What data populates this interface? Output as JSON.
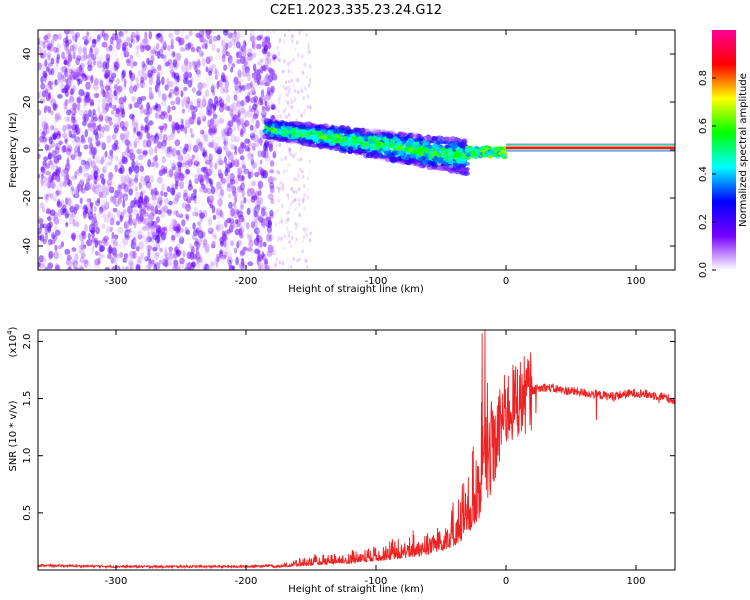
{
  "title": "C2E1.2023.335.23.24.G12",
  "chart_data": [
    {
      "type": "heatmap",
      "title": "",
      "xlabel": "Height of straight line (km)",
      "ylabel": "Frequency (Hz)",
      "xlim": [
        -360,
        130
      ],
      "ylim": [
        -50,
        50
      ],
      "xticks": [
        -300,
        -200,
        -100,
        0,
        100
      ],
      "yticks": [
        -40,
        -20,
        0,
        20,
        40
      ],
      "colorbar": {
        "label": "Normalized spectral amplitude",
        "range": [
          0,
          1
        ],
        "ticks": [
          "0.0",
          "0.2",
          "0.4",
          "0.6",
          "0.8"
        ],
        "colors": [
          "#ffffff",
          "#7700ff",
          "#0000ff",
          "#00ffff",
          "#00ff00",
          "#ffff00",
          "#ff0000",
          "#ff0099"
        ]
      },
      "features": [
        {
          "region": "noise",
          "x_range": [
            -360,
            -178
          ],
          "y_range": [
            -50,
            50
          ],
          "amplitude": 0.1
        },
        {
          "region": "sparse noise",
          "x_range": [
            -178,
            -150
          ],
          "y_range": [
            -50,
            50
          ],
          "amplitude": 0.02
        },
        {
          "region": "doppler band",
          "x_start": -185,
          "x_end": -30,
          "freq_start": 9,
          "freq_end": -3,
          "half_width": 6,
          "amplitude": 0.45
        },
        {
          "region": "transition",
          "x_range": [
            -30,
            0
          ],
          "freq": [
            -2,
            0
          ],
          "amplitude": 0.5
        },
        {
          "region": "direct signal",
          "x_range": [
            0,
            130
          ],
          "freq": 1,
          "amplitude": 0.95
        }
      ]
    },
    {
      "type": "line",
      "title": "",
      "xlabel": "Height of straight line (km)",
      "ylabel": "SNR (10 * v/v)",
      "yscale_label": "(x10",
      "yscale_exp": "4",
      "xlim": [
        -360,
        130
      ],
      "ylim": [
        0,
        2.1
      ],
      "xticks": [
        -300,
        -200,
        -100,
        0,
        100
      ],
      "yticks": [
        0.5,
        1.0,
        1.5,
        2.0
      ],
      "ytick_labels": [
        "0.5",
        "1.0",
        "1.5",
        "2.0"
      ],
      "series": [
        {
          "color": "#ee2222",
          "x": [
            -360,
            -300,
            -200,
            -180,
            -150,
            -120,
            -100,
            -80,
            -60,
            -40,
            -30,
            -20,
            -18,
            -15,
            -10,
            -5,
            0,
            10,
            20,
            30,
            40,
            60,
            80,
            100,
            120,
            130
          ],
          "y": [
            0.03,
            0.02,
            0.02,
            0.03,
            0.06,
            0.09,
            0.12,
            0.15,
            0.2,
            0.3,
            0.45,
            0.7,
            1.2,
            0.9,
            1.0,
            1.25,
            1.4,
            1.5,
            1.57,
            1.6,
            1.58,
            1.55,
            1.52,
            1.55,
            1.52,
            1.48
          ]
        }
      ]
    }
  ]
}
